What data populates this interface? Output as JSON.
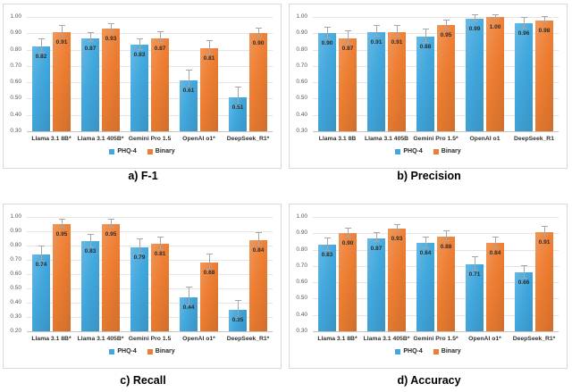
{
  "page": {
    "background": "#FFFFFF"
  },
  "palette": {
    "phq4_color": "#41A7DD",
    "binary_color": "#ED7D31",
    "grid_color": "#E4E4E4",
    "axis_line_color": "#C6C6C6",
    "axis_text_color": "#595959",
    "data_label_color": "#2B2B2B",
    "category_label_color": "#303030",
    "legend_text_color": "#262626",
    "error_bar_color": "#A6A6A6",
    "panel_border_color": "#D9D9D9",
    "caption_color": "#000000"
  },
  "chart_data": [
    {
      "id": "f1",
      "type": "bar",
      "title": "a) F-1",
      "categories": [
        "Llama 3.1 8B*",
        "Llama 3.1 405B*",
        "Gemini Pro 1.5",
        "OpenAI o1*",
        "DeepSeek_R1*"
      ],
      "ylim": [
        0.3,
        1.0
      ],
      "ytick_step": 0.1,
      "yticks": [
        "1.00",
        "0.90",
        "0.80",
        "0.70",
        "0.60",
        "0.50",
        "0.40",
        "0.30"
      ],
      "grid": true,
      "legend_position": "bottom",
      "series": [
        {
          "name": "PHQ-4",
          "values": [
            0.82,
            0.87,
            0.83,
            0.61,
            0.51
          ],
          "labels": [
            "0.82",
            "0.87",
            "0.83",
            "0.61",
            "0.51"
          ],
          "errors": [
            0.04,
            0.025,
            0.03,
            0.055,
            0.055
          ]
        },
        {
          "name": "Binary",
          "values": [
            0.91,
            0.93,
            0.87,
            0.81,
            0.9
          ],
          "labels": [
            "0.91",
            "0.93",
            "0.87",
            "0.81",
            "0.90"
          ],
          "errors": [
            0.03,
            0.02,
            0.03,
            0.04,
            0.025
          ]
        }
      ]
    },
    {
      "id": "precision",
      "type": "bar",
      "title": "b) Precision",
      "categories": [
        "Llama 3.1 8B",
        "Llama 3.1 405B",
        "Gemini Pro 1.5*",
        "OpenAI o1",
        "DeepSeek_R1"
      ],
      "ylim": [
        0.3,
        1.0
      ],
      "ytick_step": 0.1,
      "yticks": [
        "1.00",
        "0.90",
        "0.80",
        "0.70",
        "0.60",
        "0.50",
        "0.40",
        "0.30"
      ],
      "grid": true,
      "legend_position": "bottom",
      "series": [
        {
          "name": "PHQ-4",
          "values": [
            0.9,
            0.91,
            0.88,
            0.99,
            0.96
          ],
          "labels": [
            "0.90",
            "0.91",
            "0.88",
            "0.99",
            "0.96"
          ],
          "errors": [
            0.03,
            0.03,
            0.04,
            0.015,
            0.03
          ]
        },
        {
          "name": "Binary",
          "values": [
            0.87,
            0.91,
            0.95,
            1.0,
            0.98
          ],
          "labels": [
            "0.87",
            "0.91",
            "0.95",
            "1.00",
            "0.98"
          ],
          "errors": [
            0.04,
            0.03,
            0.025,
            0.008,
            0.015
          ]
        }
      ]
    },
    {
      "id": "recall",
      "type": "bar",
      "title": "c) Recall",
      "categories": [
        "Llama 3.1 8B*",
        "Llama 3.1 405B*",
        "Gemini Pro 1.5",
        "OpenAI o1*",
        "DeepSeek_R1*"
      ],
      "ylim": [
        0.2,
        1.0
      ],
      "ytick_step": 0.1,
      "yticks": [
        "1.00",
        "0.90",
        "0.80",
        "0.70",
        "0.60",
        "0.50",
        "0.40",
        "0.30",
        "0.20"
      ],
      "grid": true,
      "legend_position": "bottom",
      "series": [
        {
          "name": "PHQ-4",
          "values": [
            0.74,
            0.83,
            0.79,
            0.44,
            0.35
          ],
          "labels": [
            "0.74",
            "0.83",
            "0.79",
            "0.44",
            "0.35"
          ],
          "errors": [
            0.05,
            0.04,
            0.045,
            0.06,
            0.055
          ]
        },
        {
          "name": "Binary",
          "values": [
            0.95,
            0.95,
            0.81,
            0.68,
            0.84
          ],
          "labels": [
            "0.95",
            "0.95",
            "0.81",
            "0.68",
            "0.84"
          ],
          "errors": [
            0.025,
            0.025,
            0.04,
            0.05,
            0.04
          ]
        }
      ]
    },
    {
      "id": "accuracy",
      "type": "bar",
      "title": "d) Accuracy",
      "categories": [
        "Llama 3.1 8B*",
        "Llama 3.1 405B*",
        "Gemini Pro 1.5*",
        "OpenAI o1*",
        "DeepSeek_R1*"
      ],
      "ylim": [
        0.3,
        1.0
      ],
      "ytick_step": 0.1,
      "yticks": [
        "1.00",
        "0.90",
        "0.80",
        "0.70",
        "0.60",
        "0.50",
        "0.40",
        "0.30"
      ],
      "grid": true,
      "legend_position": "bottom",
      "series": [
        {
          "name": "PHQ-4",
          "values": [
            0.83,
            0.87,
            0.84,
            0.71,
            0.66
          ],
          "labels": [
            "0.83",
            "0.87",
            "0.84",
            "0.71",
            "0.66"
          ],
          "errors": [
            0.035,
            0.025,
            0.03,
            0.04,
            0.035
          ]
        },
        {
          "name": "Binary",
          "values": [
            0.9,
            0.93,
            0.88,
            0.84,
            0.91
          ],
          "labels": [
            "0.90",
            "0.93",
            "0.88",
            "0.84",
            "0.91"
          ],
          "errors": [
            0.025,
            0.015,
            0.025,
            0.03,
            0.025
          ]
        }
      ]
    }
  ]
}
